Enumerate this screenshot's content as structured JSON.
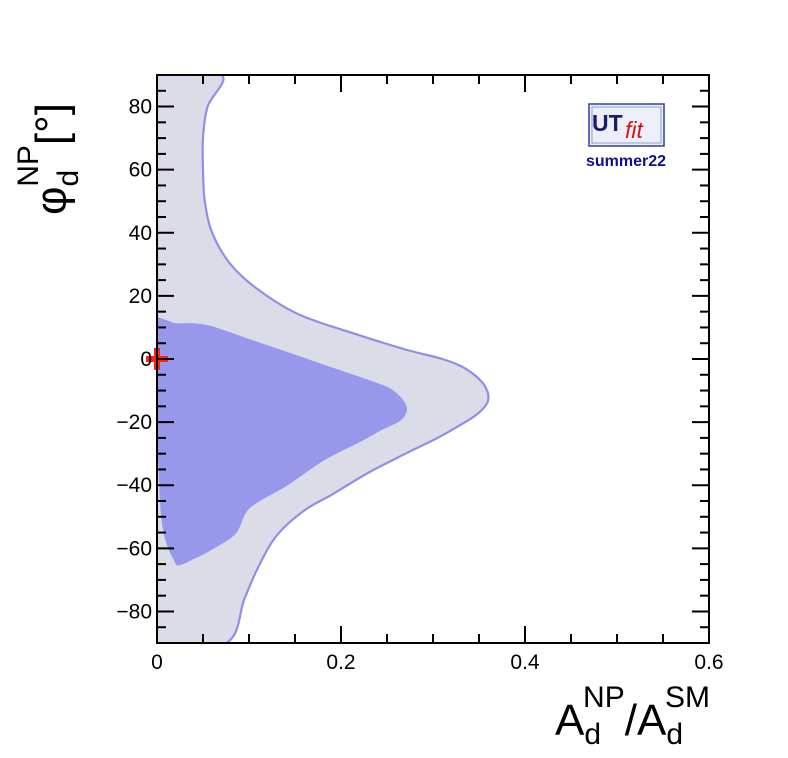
{
  "chart_data": {
    "type": "area",
    "xlabel": {
      "base": "A",
      "sub": "d",
      "sup": "NP",
      "sep": "/",
      "base2": "A",
      "sub2": "d",
      "sup2": "SM"
    },
    "ylabel": {
      "base": "φ",
      "sub": "d",
      "sup": "NP",
      "unit": "[°]"
    },
    "xlim": [
      0,
      0.6
    ],
    "ylim": [
      -90,
      90
    ],
    "x_ticks": [
      0,
      0.2,
      0.4,
      0.6
    ],
    "x_tick_labels": [
      "0",
      "0.2",
      "0.4",
      "0.6"
    ],
    "y_ticks": [
      -80,
      -60,
      -40,
      -20,
      0,
      20,
      40,
      60,
      80
    ],
    "y_tick_labels": [
      "−80",
      "−60",
      "−40",
      "−20",
      "0",
      "20",
      "40",
      "60",
      "80"
    ],
    "grid": false,
    "regions": [
      {
        "level": "outer",
        "color": "#dcdce8",
        "edge_color": "#8f8fe8",
        "boundary": [
          [
            0,
            90
          ],
          [
            0.07,
            90
          ],
          [
            0.055,
            80
          ],
          [
            0.05,
            70
          ],
          [
            0.05,
            60
          ],
          [
            0.052,
            50
          ],
          [
            0.06,
            40
          ],
          [
            0.08,
            30
          ],
          [
            0.11,
            22
          ],
          [
            0.155,
            14
          ],
          [
            0.215,
            8
          ],
          [
            0.27,
            3
          ],
          [
            0.31,
            0
          ],
          [
            0.335,
            -3
          ],
          [
            0.355,
            -8
          ],
          [
            0.36,
            -13
          ],
          [
            0.35,
            -17
          ],
          [
            0.335,
            -20
          ],
          [
            0.305,
            -25
          ],
          [
            0.27,
            -30
          ],
          [
            0.23,
            -36
          ],
          [
            0.19,
            -43
          ],
          [
            0.16,
            -48
          ],
          [
            0.13,
            -56
          ],
          [
            0.11,
            -66
          ],
          [
            0.095,
            -76
          ],
          [
            0.075,
            -90
          ],
          [
            0,
            -90
          ]
        ]
      },
      {
        "level": "inner",
        "color": "#9797eb",
        "edge_color": "#9797eb",
        "boundary": [
          [
            0,
            13
          ],
          [
            0.01,
            12
          ],
          [
            0.02,
            11
          ],
          [
            0.04,
            11
          ],
          [
            0.06,
            10
          ],
          [
            0.1,
            6
          ],
          [
            0.15,
            1
          ],
          [
            0.19,
            -3
          ],
          [
            0.23,
            -7
          ],
          [
            0.255,
            -10
          ],
          [
            0.27,
            -15
          ],
          [
            0.265,
            -19
          ],
          [
            0.245,
            -22
          ],
          [
            0.22,
            -26
          ],
          [
            0.18,
            -32
          ],
          [
            0.14,
            -40
          ],
          [
            0.1,
            -47
          ],
          [
            0.085,
            -55
          ],
          [
            0.06,
            -60
          ],
          [
            0.04,
            -63
          ],
          [
            0.025,
            -65
          ],
          [
            0.02,
            -64
          ],
          [
            0.01,
            -57
          ],
          [
            0.005,
            -48
          ],
          [
            0.003,
            -35
          ],
          [
            0,
            -20
          ]
        ]
      }
    ],
    "marker": {
      "x": 0,
      "y": 0,
      "symbol": "cross",
      "color": "#ff2020"
    }
  },
  "logo": {
    "ut": "UT",
    "fit": "fit",
    "edition": "summer22"
  }
}
